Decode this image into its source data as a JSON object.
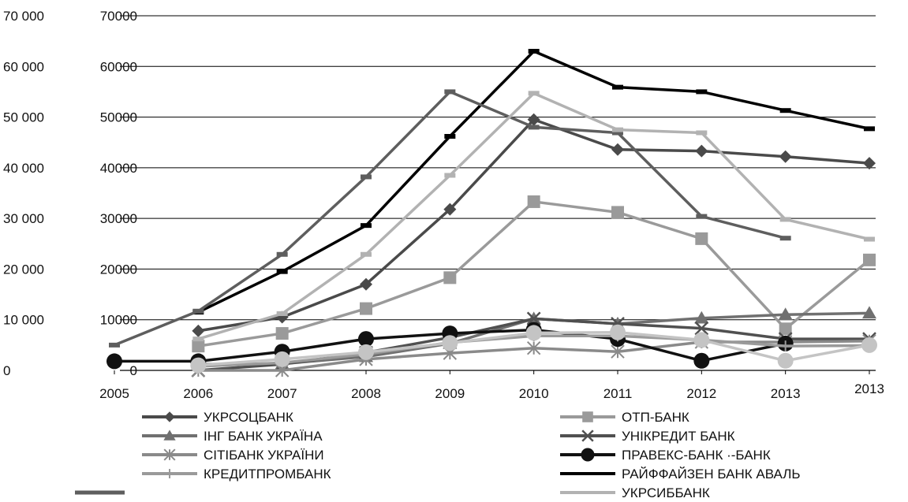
{
  "chart_data": {
    "type": "line",
    "title": "",
    "xlabel": "",
    "ylabel": "",
    "ylim": [
      0,
      70000
    ],
    "grid": "horizontal",
    "legend": "bottom",
    "y_ticks_left": [
      "0",
      "10 000",
      "20 000",
      "30 000",
      "40 000",
      "50 000",
      "60 000",
      "70 000"
    ],
    "y_ticks_right": [
      "0",
      "10000",
      "20000",
      "30000",
      "40000",
      "50000",
      "60000",
      "70000"
    ],
    "categories": [
      "2005",
      "2006",
      "2007",
      "2008",
      "2009",
      "2010",
      "2011",
      "2012",
      "2013",
      "2013"
    ],
    "series": [
      {
        "name": "УКРСОЦБАНК",
        "color": "#4a4a4a",
        "marker": "diamond",
        "values": [
          null,
          7800,
          10500,
          17000,
          31800,
          49500,
          43600,
          43300,
          42200,
          40900
        ]
      },
      {
        "name": "ОТП-БАНК",
        "color": "#9a9a9a",
        "marker": "square",
        "values": [
          null,
          4800,
          7300,
          12200,
          18300,
          33300,
          31200,
          26000,
          8200,
          21800
        ]
      },
      {
        "name": "ІНГ БАНК УКРАЇНА",
        "color": "#707070",
        "marker": "triangle",
        "values": [
          null,
          1200,
          1300,
          2700,
          5300,
          10200,
          9200,
          10300,
          11000,
          11300
        ]
      },
      {
        "name": "УНІКРЕДИТ БАНК",
        "color": "#505050",
        "marker": "x",
        "values": [
          null,
          0,
          1200,
          3500,
          6500,
          10200,
          9200,
          8300,
          6200,
          6200
        ]
      },
      {
        "name": "СІТІБАНК УКРАЇНИ",
        "color": "#8a8a8a",
        "marker": "star",
        "values": [
          null,
          0,
          0,
          2200,
          3400,
          4400,
          3700,
          5600,
          5600,
          5800
        ]
      },
      {
        "name": "ПРАВЕКС-БАНК",
        "color": "#111111",
        "marker": "circle",
        "values": [
          1800,
          1800,
          3700,
          6200,
          7300,
          8000,
          6200,
          1900,
          5300,
          null
        ]
      },
      {
        "name": "КРЕДИТПРОМБАНК",
        "color": "#9a9a9a",
        "marker": "plus",
        "values": [
          null,
          800,
          1500,
          3200,
          5500,
          6800,
          6800,
          6000,
          4800,
          4900
        ]
      },
      {
        "name": "РАЙФФАЙЗЕН БАНК АВАЛЬ",
        "color": "#000000",
        "marker": "dash",
        "values": [
          null,
          11500,
          19500,
          28600,
          46200,
          63000,
          55900,
          55000,
          51300,
          47700
        ]
      },
      {
        "name": "",
        "color": "#5e5e5e",
        "marker": "dash",
        "values": [
          5000,
          11700,
          22900,
          38200,
          55000,
          48000,
          46900,
          30400,
          26100,
          null
        ]
      },
      {
        "name": "УКРСИББАНК",
        "color": "#b2b2b2",
        "marker": "dash",
        "values": [
          null,
          6200,
          11200,
          22900,
          38500,
          54700,
          47500,
          46900,
          29800,
          25900
        ]
      },
      {
        "name": "",
        "color": "#c4c4c4",
        "marker": "circle",
        "values": [
          null,
          1000,
          2200,
          3600,
          5400,
          7400,
          7500,
          6000,
          1900,
          5000
        ]
      }
    ],
    "legend_rows": [
      [
        "УКРСОЦБАНК",
        "ОТП-БАНК"
      ],
      [
        "ІНГ БАНК УКРАЇНА",
        "УНІКРЕДИТ БАНК"
      ],
      [
        "СІТІБАНК УКРАЇНИ",
        "ПРАВЕКС-БАНК ·-БАНК"
      ],
      [
        "КРЕДИТПРОМБАНК",
        "РАЙФФАЙЗЕН БАНК АВАЛЬ"
      ],
      [
        "",
        "УКРСИББАНК"
      ]
    ]
  }
}
